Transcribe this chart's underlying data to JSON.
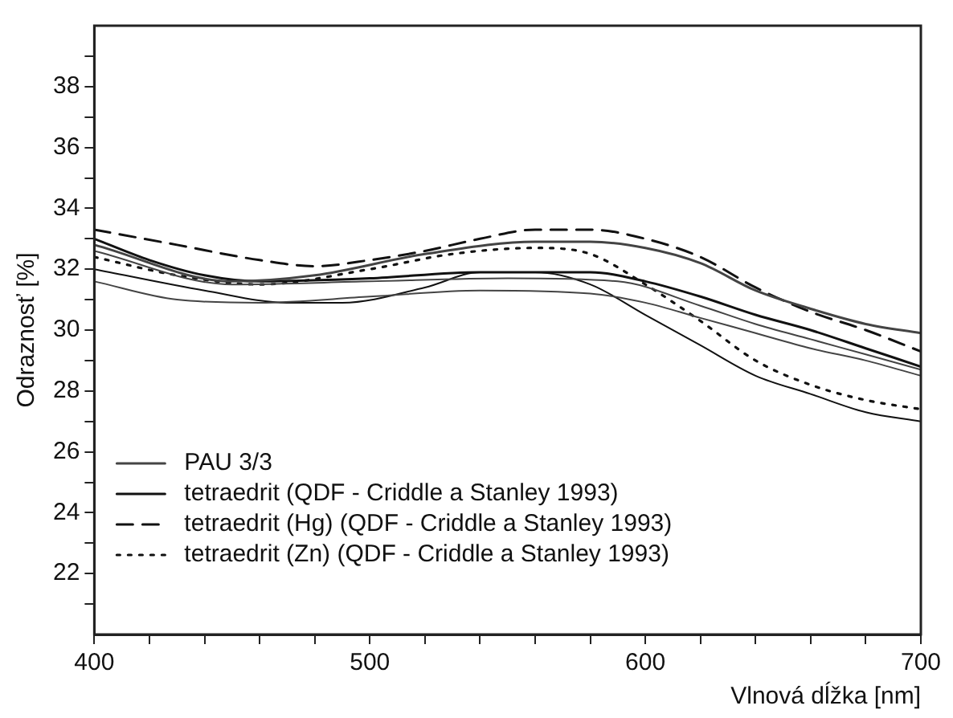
{
  "chart_data": {
    "type": "line",
    "xlabel": "Vlnová dĺžka [nm]",
    "ylabel": "Odraznosť [%]",
    "xlim": [
      400,
      700
    ],
    "ylim": [
      20,
      40
    ],
    "xticks": [
      400,
      {
        "value": 420,
        "label": null
      },
      {
        "value": 440,
        "label": null
      },
      {
        "value": 460,
        "label": null
      },
      {
        "value": 480,
        "label": null
      },
      500,
      {
        "value": 520,
        "label": null
      },
      {
        "value": 540,
        "label": null
      },
      {
        "value": 560,
        "label": null
      },
      {
        "value": 580,
        "label": null
      },
      600,
      {
        "value": 620,
        "label": null
      },
      {
        "value": 640,
        "label": null
      },
      {
        "value": 660,
        "label": null
      },
      {
        "value": 680,
        "label": null
      },
      700
    ],
    "yticks": [
      {
        "value": 21,
        "label": null
      },
      22,
      {
        "value": 23,
        "label": null
      },
      24,
      {
        "value": 25,
        "label": null
      },
      26,
      {
        "value": 27,
        "label": null
      },
      28,
      {
        "value": 29,
        "label": null
      },
      30,
      {
        "value": 31,
        "label": null
      },
      32,
      {
        "value": 33,
        "label": null
      },
      34,
      {
        "value": 35,
        "label": null
      },
      36,
      {
        "value": 37,
        "label": null
      },
      38,
      {
        "value": 39,
        "label": null
      }
    ],
    "grid": false,
    "legend": "bottom left",
    "marker": "none",
    "series": [
      {
        "name": "PAU 3/3",
        "color": "#444444",
        "line_style": "solid",
        "x": [
          400,
          450,
          480,
          520,
          560,
          580,
          600,
          620,
          640,
          660,
          680,
          700
        ],
        "values": [
          32.8,
          31.6,
          31.8,
          32.5,
          32.9,
          32.9,
          32.7,
          32.2,
          31.3,
          30.7,
          30.2,
          29.9
        ]
      },
      {
        "color": "#444444",
        "line_style": "solid",
        "x": [
          400,
          430,
          460,
          500,
          540,
          580,
          600,
          620,
          640,
          660,
          680,
          700
        ],
        "values": [
          31.6,
          31.0,
          30.9,
          31.1,
          31.3,
          31.2,
          30.9,
          30.4,
          29.9,
          29.4,
          29.0,
          28.5
        ]
      },
      {
        "color": "#444444",
        "line_style": "solid",
        "x": [
          400,
          450,
          500,
          550,
          590,
          620,
          640,
          660,
          680,
          700
        ],
        "values": [
          32.6,
          31.5,
          31.6,
          31.7,
          31.6,
          30.8,
          30.2,
          29.7,
          29.2,
          28.7
        ]
      },
      {
        "name": "tetraedrit (QDF - Criddle a Stanley 1993)",
        "color": "#111111",
        "line_style": "solid",
        "x": [
          400,
          420,
          440,
          460,
          500,
          540,
          580,
          600,
          620,
          640,
          660,
          680,
          700
        ],
        "values": [
          33.0,
          32.3,
          31.8,
          31.6,
          31.7,
          31.9,
          31.9,
          31.6,
          31.1,
          30.5,
          30.0,
          29.4,
          28.8
        ]
      },
      {
        "color": "#111111",
        "line_style": "solid",
        "x": [
          400,
          440,
          470,
          490,
          520,
          540,
          560,
          580,
          600,
          620,
          640,
          660,
          680,
          700
        ],
        "values": [
          32.0,
          31.3,
          30.9,
          30.9,
          31.4,
          31.9,
          31.9,
          31.5,
          30.5,
          29.5,
          28.5,
          27.9,
          27.3,
          27.0
        ]
      },
      {
        "name": "tetraedrit (Hg) (QDF - Criddle a Stanley 1993)",
        "color": "#111111",
        "line_style": "dashed",
        "x": [
          400,
          430,
          460,
          480,
          500,
          520,
          540,
          560,
          580,
          600,
          620,
          640,
          660,
          680,
          700
        ],
        "values": [
          33.3,
          32.8,
          32.3,
          32.1,
          32.3,
          32.6,
          33.0,
          33.3,
          33.3,
          33.0,
          32.4,
          31.4,
          30.6,
          30.0,
          29.3
        ]
      },
      {
        "name": "tetraedrit (Zn) (QDF - Criddle a Stanley 1993)",
        "color": "#111111",
        "line_style": "dotted",
        "x": [
          400,
          430,
          460,
          500,
          530,
          560,
          580,
          600,
          620,
          640,
          660,
          680,
          700
        ],
        "values": [
          32.4,
          31.8,
          31.5,
          32.0,
          32.5,
          32.7,
          32.5,
          31.5,
          30.3,
          29.0,
          28.2,
          27.7,
          27.4
        ]
      }
    ]
  }
}
